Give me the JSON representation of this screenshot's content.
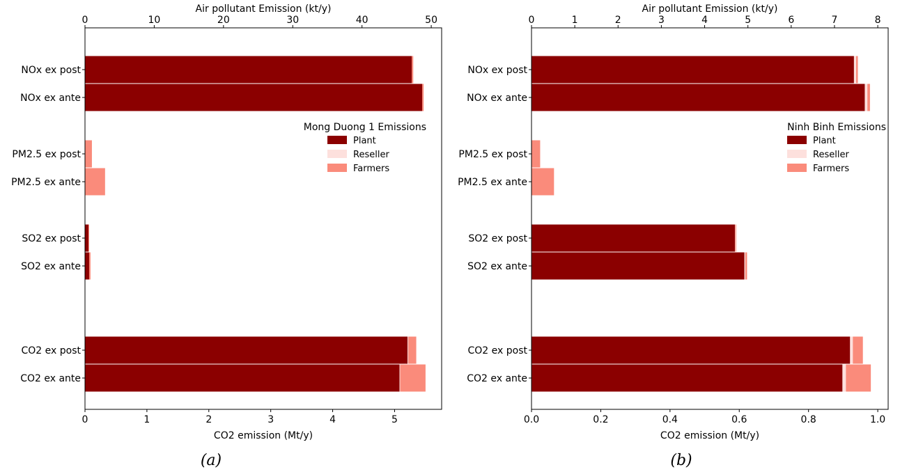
{
  "chart_data": [
    {
      "type": "bar",
      "orientation": "horizontal",
      "stacked": true,
      "caption": "(a)",
      "legend_title": "Mong Duong 1 Emissions",
      "legend_position": "right-middle",
      "series": [
        {
          "name": "Plant",
          "color": "#8b0000"
        },
        {
          "name": "Reseller",
          "color": "#fde0dd"
        },
        {
          "name": "Farmers",
          "color": "#fa8b7b"
        }
      ],
      "top_axis": {
        "label": "Air pollutant Emission (kt/y)",
        "ticks": [
          "0",
          "10",
          "20",
          "30",
          "40",
          "50"
        ],
        "range": [
          0,
          51.5
        ]
      },
      "bottom_axis": {
        "label": "CO2 emission (Mt/y)",
        "ticks": [
          "0",
          "1",
          "2",
          "3",
          "4",
          "5"
        ],
        "range": [
          0,
          5.76
        ]
      },
      "rows": [
        {
          "label": "NOx ex post",
          "axis": "top",
          "values": {
            "Plant": 47.2,
            "Reseller": 0,
            "Farmers": 0.2
          }
        },
        {
          "label": "NOx  ex ante",
          "axis": "top",
          "values": {
            "Plant": 48.7,
            "Reseller": 0,
            "Farmers": 0.2
          }
        },
        {
          "label": "PM2.5 ex post",
          "axis": "top",
          "values": {
            "Plant": 0,
            "Reseller": 0,
            "Farmers": 1.0
          }
        },
        {
          "label": "PM2.5 ex ante",
          "axis": "top",
          "values": {
            "Plant": 0,
            "Reseller": 0,
            "Farmers": 2.9
          }
        },
        {
          "label": "SO2 ex post",
          "axis": "top",
          "values": {
            "Plant": 0.5,
            "Reseller": 0,
            "Farmers": 0.1
          }
        },
        {
          "label": "SO2  ex ante",
          "axis": "top",
          "values": {
            "Plant": 0.6,
            "Reseller": 0,
            "Farmers": 0.2
          }
        },
        {
          "label": "CO2 ex post",
          "axis": "bottom",
          "values": {
            "Plant": 5.21,
            "Reseller": 0.01,
            "Farmers": 0.13
          }
        },
        {
          "label": "CO2 ex ante",
          "axis": "bottom",
          "values": {
            "Plant": 5.08,
            "Reseller": 0.01,
            "Farmers": 0.41
          }
        }
      ]
    },
    {
      "type": "bar",
      "orientation": "horizontal",
      "stacked": true,
      "caption": "(b)",
      "legend_title": "Ninh Binh Emissions",
      "legend_position": "right-middle",
      "series": [
        {
          "name": "Plant",
          "color": "#8b0000"
        },
        {
          "name": "Reseller",
          "color": "#fde0dd"
        },
        {
          "name": "Farmers",
          "color": "#fa8b7b"
        }
      ],
      "top_axis": {
        "label": "Air pollutant Emission (kt/y)",
        "ticks": [
          "0",
          "1",
          "2",
          "3",
          "4",
          "5",
          "6",
          "7",
          "8"
        ],
        "range": [
          0,
          8.24
        ]
      },
      "bottom_axis": {
        "label": "CO2 emission (Mt/y)",
        "ticks": [
          "0.0",
          "0.2",
          "0.4",
          "0.6",
          "0.8",
          "1.0"
        ],
        "range": [
          0,
          1.03
        ]
      },
      "rows": [
        {
          "label": "NOx ex post",
          "axis": "top",
          "values": {
            "Plant": 7.45,
            "Reseller": 0.05,
            "Farmers": 0.04
          }
        },
        {
          "label": "NOx  ex ante",
          "axis": "top",
          "values": {
            "Plant": 7.7,
            "Reseller": 0.06,
            "Farmers": 0.06
          }
        },
        {
          "label": "PM2.5 ex post",
          "axis": "top",
          "values": {
            "Plant": 0,
            "Reseller": 0,
            "Farmers": 0.2
          }
        },
        {
          "label": "PM2.5 ex ante",
          "axis": "top",
          "values": {
            "Plant": 0,
            "Reseller": 0,
            "Farmers": 0.52
          }
        },
        {
          "label": "SO2 ex post",
          "axis": "top",
          "values": {
            "Plant": 4.7,
            "Reseller": 0.01,
            "Farmers": 0.02
          }
        },
        {
          "label": "SO2  ex ante",
          "axis": "top",
          "values": {
            "Plant": 4.92,
            "Reseller": 0.02,
            "Farmers": 0.04
          }
        },
        {
          "label": "CO2 ex post",
          "axis": "bottom",
          "values": {
            "Plant": 0.92,
            "Reseller": 0.008,
            "Farmers": 0.029
          }
        },
        {
          "label": "CO2 ex ante",
          "axis": "bottom",
          "values": {
            "Plant": 0.898,
            "Reseller": 0.01,
            "Farmers": 0.072
          }
        }
      ]
    }
  ]
}
